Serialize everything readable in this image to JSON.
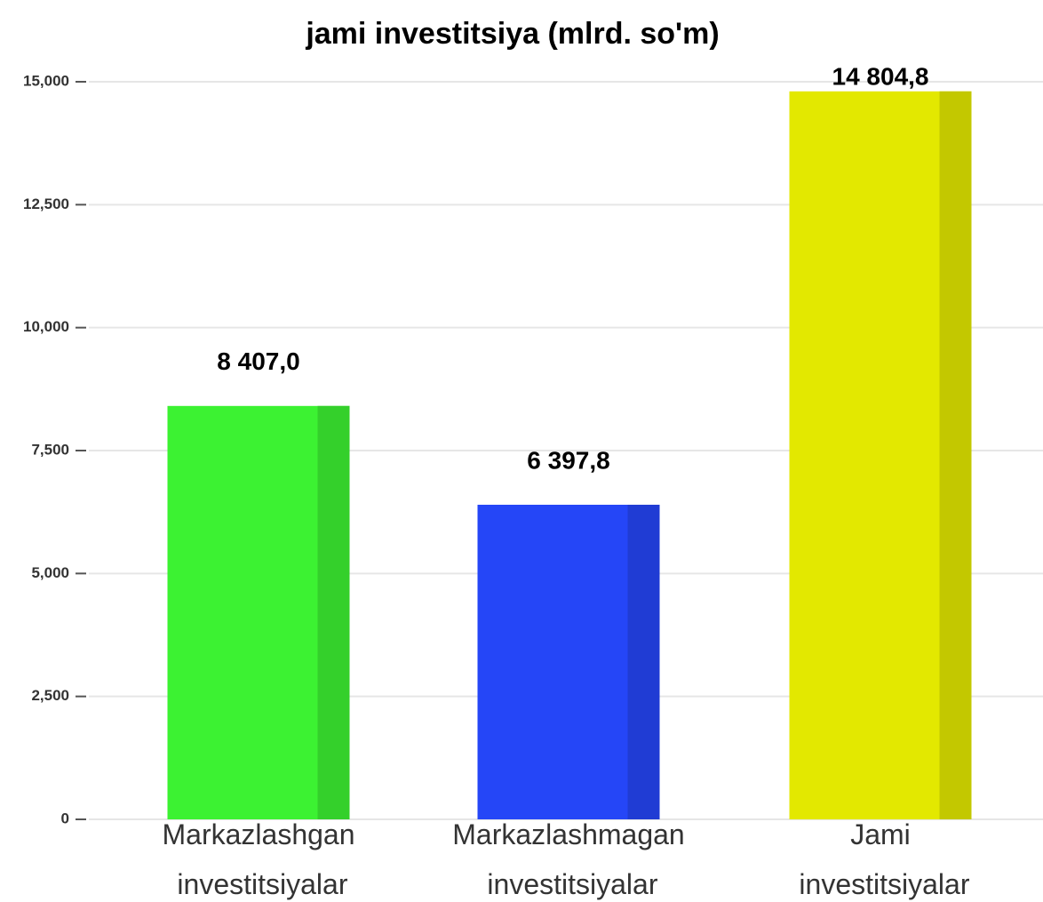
{
  "chart_data": {
    "type": "bar",
    "title": "jami investitsiya (mlrd. so'm)",
    "categories": [
      "Markazlashgan investitsiyalar",
      "Markazlashmagan investitsiyalar",
      "Jami investitsiyalar"
    ],
    "values": [
      8407.0,
      6397.8,
      14804.8
    ],
    "value_labels": [
      "8 407,0",
      "6 397,8",
      "14 804,8"
    ],
    "colors": [
      "#3cf232",
      "#2546f7",
      "#e3e800"
    ],
    "ylim": [
      0,
      15000
    ],
    "yticks": [
      0,
      {
        "value": 2500,
        "label": "2,500"
      },
      {
        "value": 5000,
        "label": "5,000"
      },
      {
        "value": 7500,
        "label": "7,500"
      },
      {
        "value": 10000,
        "label": "10,000"
      },
      {
        "value": 12500,
        "label": "12,500"
      },
      {
        "value": 15000,
        "label": "15,000"
      }
    ],
    "grid": true
  }
}
